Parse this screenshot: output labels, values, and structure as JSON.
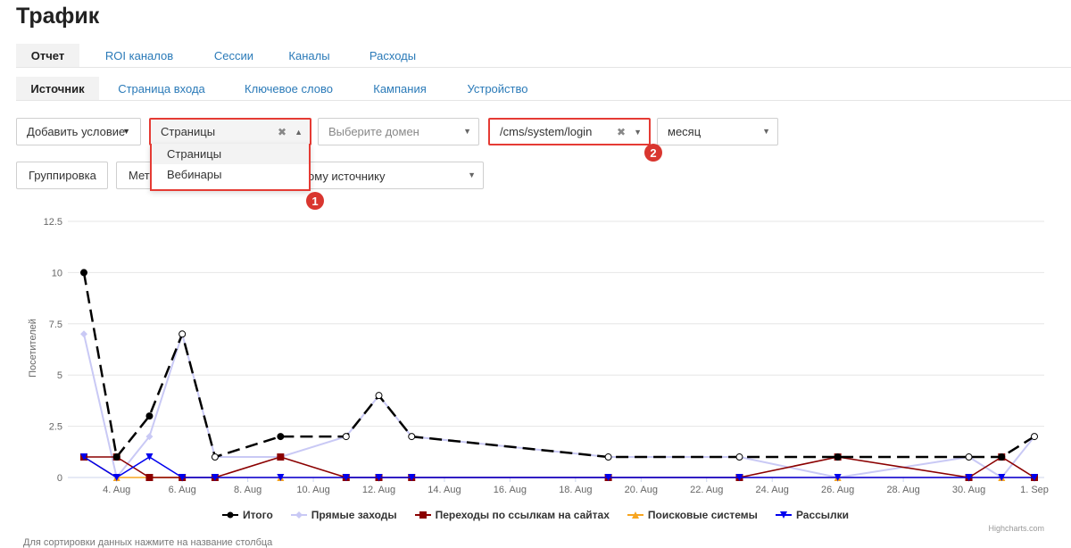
{
  "page": {
    "title": "Трафик"
  },
  "tabs_primary": [
    "Отчет",
    "ROI каналов",
    "Сессии",
    "Каналы",
    "Расходы"
  ],
  "tabs_secondary": [
    "Источник",
    "Страница входа",
    "Ключевое слово",
    "Кампания",
    "Устройство"
  ],
  "filters": {
    "add_condition": "Добавить условие",
    "type_select": "Страницы",
    "domain_placeholder": "Выберите домен",
    "page_select": "/cms/system/login",
    "period_select": "месяц",
    "group_button": "Группировка",
    "metric_partial": "Мет",
    "source_partial": "ому источнику",
    "dropdown_options": [
      "Страницы",
      "Вебинары"
    ]
  },
  "badges": [
    "1",
    "2"
  ],
  "colors": {
    "total": "#000000",
    "direct": "#c9c9f5",
    "referral": "#8b0000",
    "search": "#f7a520",
    "mail": "#0000ee",
    "highlight": "#e53b34",
    "link": "#2a7ab8"
  },
  "chart_data": {
    "type": "line",
    "ylabel": "Посетителей",
    "y_ticks": [
      "0",
      "2.5",
      "5",
      "7.5",
      "10",
      "12.5"
    ],
    "ylim": [
      0,
      12.5
    ],
    "x_ticks": [
      "4. Aug",
      "6. Aug",
      "8. Aug",
      "10. Aug",
      "12. Aug",
      "14. Aug",
      "16. Aug",
      "18. Aug",
      "20. Aug",
      "22. Aug",
      "24. Aug",
      "26. Aug",
      "28. Aug",
      "30. Aug",
      "1. Sep"
    ],
    "x_range": [
      "3. Aug",
      "1. Sep"
    ],
    "series": [
      {
        "name": "Итого",
        "points": [
          [
            "3. Aug",
            10
          ],
          [
            "4. Aug",
            1
          ],
          [
            "5. Aug",
            3
          ],
          [
            "6. Aug",
            7
          ],
          [
            "7. Aug",
            1
          ],
          [
            "9. Aug",
            2
          ],
          [
            "11. Aug",
            2
          ],
          [
            "12. Aug",
            4
          ],
          [
            "13. Aug",
            2
          ],
          [
            "19. Aug",
            1
          ],
          [
            "23. Aug",
            1
          ],
          [
            "26. Aug",
            1
          ],
          [
            "30. Aug",
            1
          ],
          [
            "31. Aug",
            1
          ],
          [
            "1. Sep",
            2
          ]
        ]
      },
      {
        "name": "Прямые заходы",
        "points": [
          [
            "3. Aug",
            7
          ],
          [
            "4. Aug",
            0
          ],
          [
            "5. Aug",
            2
          ],
          [
            "6. Aug",
            7
          ],
          [
            "7. Aug",
            1
          ],
          [
            "9. Aug",
            1
          ],
          [
            "11. Aug",
            2
          ],
          [
            "12. Aug",
            4
          ],
          [
            "13. Aug",
            2
          ],
          [
            "19. Aug",
            1
          ],
          [
            "23. Aug",
            1
          ],
          [
            "26. Aug",
            0
          ],
          [
            "30. Aug",
            1
          ],
          [
            "31. Aug",
            0
          ],
          [
            "1. Sep",
            2
          ]
        ]
      },
      {
        "name": "Переходы по ссылкам на сайтах",
        "points": [
          [
            "3. Aug",
            1
          ],
          [
            "4. Aug",
            1
          ],
          [
            "5. Aug",
            0
          ],
          [
            "6. Aug",
            0
          ],
          [
            "7. Aug",
            0
          ],
          [
            "9. Aug",
            1
          ],
          [
            "11. Aug",
            0
          ],
          [
            "12. Aug",
            0
          ],
          [
            "13. Aug",
            0
          ],
          [
            "19. Aug",
            0
          ],
          [
            "23. Aug",
            0
          ],
          [
            "26. Aug",
            1
          ],
          [
            "30. Aug",
            0
          ],
          [
            "31. Aug",
            1
          ],
          [
            "1. Sep",
            0
          ]
        ]
      },
      {
        "name": "Поисковые системы",
        "points": [
          [
            "3. Aug",
            1
          ],
          [
            "4. Aug",
            0
          ],
          [
            "5. Aug",
            0
          ],
          [
            "6. Aug",
            0
          ],
          [
            "7. Aug",
            0
          ],
          [
            "9. Aug",
            0
          ],
          [
            "11. Aug",
            0
          ],
          [
            "12. Aug",
            0
          ],
          [
            "13. Aug",
            0
          ],
          [
            "19. Aug",
            0
          ],
          [
            "23. Aug",
            0
          ],
          [
            "26. Aug",
            0
          ],
          [
            "30. Aug",
            0
          ],
          [
            "31. Aug",
            0
          ],
          [
            "1. Sep",
            0
          ]
        ]
      },
      {
        "name": "Рассылки",
        "points": [
          [
            "3. Aug",
            1
          ],
          [
            "4. Aug",
            0
          ],
          [
            "5. Aug",
            1
          ],
          [
            "6. Aug",
            0
          ],
          [
            "7. Aug",
            0
          ],
          [
            "9. Aug",
            0
          ],
          [
            "11. Aug",
            0
          ],
          [
            "12. Aug",
            0
          ],
          [
            "13. Aug",
            0
          ],
          [
            "19. Aug",
            0
          ],
          [
            "23. Aug",
            0
          ],
          [
            "26. Aug",
            0
          ],
          [
            "30. Aug",
            0
          ],
          [
            "31. Aug",
            0
          ],
          [
            "1. Sep",
            0
          ]
        ]
      }
    ],
    "grid": "horizontal",
    "legend_position": "bottom-center",
    "credits": "Highcharts.com"
  },
  "footnote": "Для сортировки данных нажмите на название столбца"
}
